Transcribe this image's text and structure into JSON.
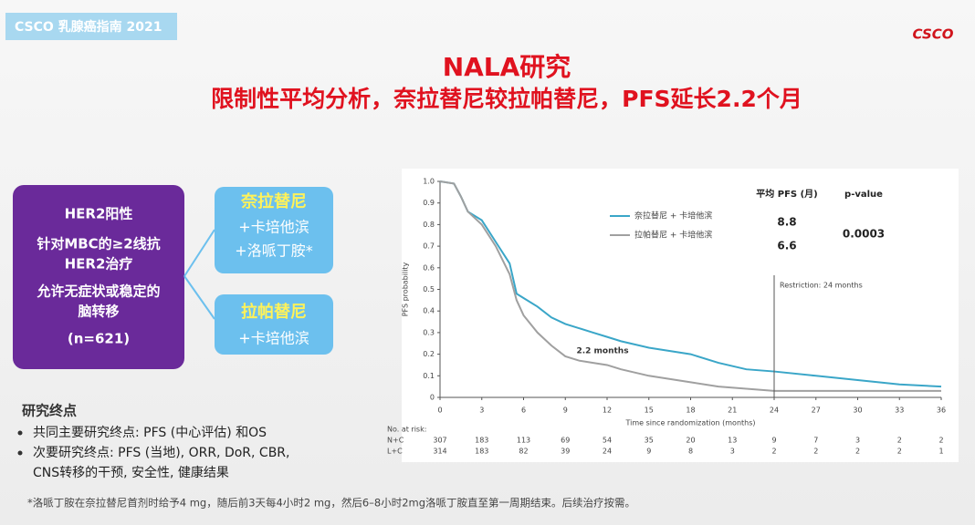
{
  "header": {
    "tag": "CSCO 乳腺癌指南 2021",
    "logo": "CSCO",
    "title_lines": [
      "NALA研究",
      "限制性平均分析，奈拉替尼较拉帕替尼，PFS延长2.2个月"
    ]
  },
  "population": {
    "lines": [
      "HER2阳性",
      "针对MBC的≥2线抗",
      "HER2治疗",
      "允许无症状或稳定的",
      "脑转移",
      "(n=621)"
    ]
  },
  "arms": [
    {
      "name": "奈拉替尼",
      "lines": [
        "+卡培他滨",
        "+洛哌丁胺*"
      ]
    },
    {
      "name": "拉帕替尼",
      "lines": [
        "+卡培他滨"
      ]
    }
  ],
  "endpoints": {
    "title": "研究终点",
    "bullets": [
      "共同主要研究终点: PFS (中心评估) 和OS",
      "次要研究终点: PFS (当地), ORR, DoR, CBR,",
      "CNS转移的干预, 安全性, 健康结果"
    ]
  },
  "footnote": "*洛哌丁胺在奈拉替尼首剂时给予4 mg，随后前3天每4小时2 mg，然后6–8小时2mg洛哌丁胺直至第一周期结束。后续治疗按需。",
  "chart_data": {
    "type": "line",
    "x_label": "Time since randomization (months)",
    "y_label": "PFS probability",
    "x": [
      0,
      1,
      1.5,
      2,
      3,
      4,
      5,
      5.5,
      6,
      7,
      8,
      9,
      10,
      11,
      12,
      13,
      15,
      18,
      20,
      22,
      24,
      27,
      30,
      33,
      36
    ],
    "series": [
      {
        "name": "奈拉替尼 + 卡培他滨",
        "color": "#3aa6c8",
        "rmst": "8.8",
        "values": [
          1.0,
          0.99,
          0.93,
          0.86,
          0.82,
          0.72,
          0.62,
          0.48,
          0.46,
          0.42,
          0.37,
          0.34,
          0.32,
          0.3,
          0.28,
          0.26,
          0.23,
          0.2,
          0.16,
          0.13,
          0.12,
          0.1,
          0.08,
          0.06,
          0.05
        ]
      },
      {
        "name": "拉帕替尼 + 卡培他滨",
        "color": "#a0a0a0",
        "rmst": "6.6",
        "values": [
          1.0,
          0.99,
          0.93,
          0.86,
          0.8,
          0.7,
          0.57,
          0.45,
          0.38,
          0.3,
          0.24,
          0.19,
          0.17,
          0.16,
          0.15,
          0.13,
          0.1,
          0.07,
          0.05,
          0.04,
          0.03,
          0.03,
          0.03,
          0.03,
          0.03
        ]
      }
    ],
    "xlim": [
      0,
      36
    ],
    "xticks": [
      0,
      3,
      6,
      9,
      12,
      15,
      18,
      21,
      24,
      27,
      30,
      33,
      36
    ],
    "ylim": [
      0,
      1
    ],
    "yticks": [
      0,
      0.1,
      0.2,
      0.3,
      0.4,
      0.5,
      0.6,
      0.7,
      0.8,
      0.9,
      {
        "value": 1,
        "label": "1.0"
      }
    ],
    "grid": false,
    "rmst_header": "平均 PFS (月)",
    "p_header": "p-value",
    "p_value": "0.0003",
    "restriction": {
      "x": 24,
      "label": "Restriction: 24 months"
    },
    "annotation": "2.2 months",
    "risk_table": {
      "title": "No. at risk:",
      "rows": [
        {
          "label": "N+C",
          "values": [
            307,
            183,
            113,
            69,
            54,
            35,
            20,
            13,
            9,
            7,
            3,
            2,
            2
          ]
        },
        {
          "label": "L+C",
          "values": [
            314,
            183,
            82,
            39,
            24,
            9,
            8,
            3,
            2,
            2,
            2,
            2,
            1
          ]
        }
      ]
    }
  }
}
